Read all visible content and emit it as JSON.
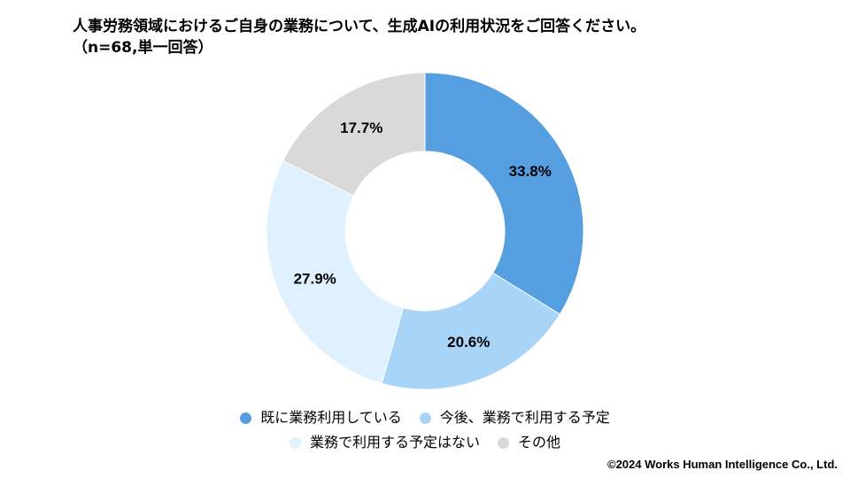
{
  "title_line1": "人事労務領域におけるご自身の業務について、生成AIの利用状況をご回答ください。",
  "title_line2": "（n=68,単一回答）",
  "copyright": "©2024 Works Human Intelligence Co., Ltd.",
  "chart_data": {
    "type": "pie",
    "style": "donut",
    "categories": [
      "既に業務利用している",
      "今後、業務で利用する予定",
      "業務で利用する予定はない",
      "その他"
    ],
    "values": [
      33.8,
      20.6,
      27.9,
      17.7
    ],
    "labels": [
      "33.8%",
      "20.6%",
      "27.9%",
      "17.7%"
    ],
    "colors": [
      "#559fe0",
      "#a8d4f8",
      "#dff1fe",
      "#d9d9d9"
    ],
    "legend_position": "bottom",
    "legend": [
      {
        "label": "既に業務利用している",
        "color": "#559fe0"
      },
      {
        "label": "今後、業務で利用する予定",
        "color": "#a8d4f8"
      },
      {
        "label": "業務で利用する予定はない",
        "color": "#dff1fe"
      },
      {
        "label": "その他",
        "color": "#d9d9d9"
      }
    ]
  }
}
